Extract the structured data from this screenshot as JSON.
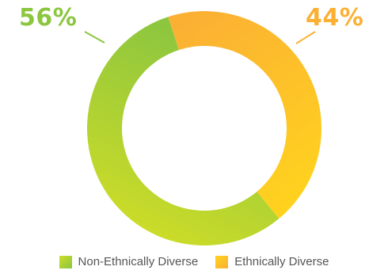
{
  "chart_data": {
    "type": "pie",
    "categories": [
      "Non-Ethnically Diverse",
      "Ethnically Diverse"
    ],
    "values": [
      56,
      44
    ],
    "value_labels": [
      "56%",
      "44%"
    ],
    "colors": {
      "Non-Ethnically Diverse": {
        "from": "#cddc28",
        "to": "#8cc63f"
      },
      "Ethnically Diverse": {
        "from": "#ffd21e",
        "to": "#fbb034"
      }
    },
    "donut": true,
    "legend_position": "bottom"
  }
}
